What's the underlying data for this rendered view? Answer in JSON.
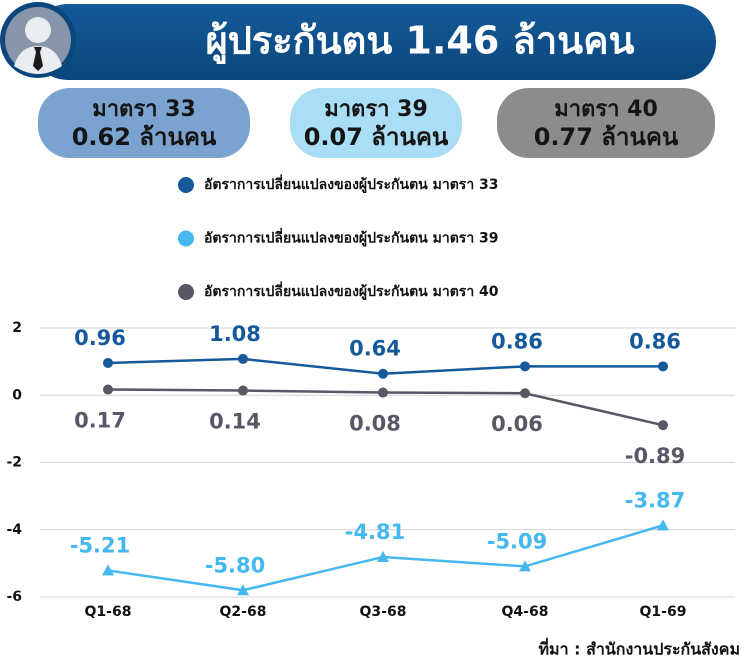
{
  "header": {
    "title": "ผู้ประกันตน   1.46 ล้านคน"
  },
  "cards": [
    {
      "label": "มาตรา 33",
      "value": "0.62 ล้านคน",
      "color": "#7ba3cf"
    },
    {
      "label": "มาตรา 39",
      "value": "0.07 ล้านคน",
      "color": "#a9def6"
    },
    {
      "label": "มาตรา 40",
      "value": "0.77 ล้านคน",
      "color": "#8c8c8c"
    }
  ],
  "source": "ที่มา : สำนักงานประกันสังคม",
  "chart_data": {
    "type": "line",
    "categories": [
      "Q1-68",
      "Q2-68",
      "Q3-68",
      "Q4-68",
      "Q1-69"
    ],
    "series": [
      {
        "name": "อัตราการเปลี่ยนแปลงของผู้ประกันตน มาตรา 33",
        "color": "#15599a",
        "marker": "circle",
        "label_position": "above",
        "values": [
          0.96,
          1.08,
          0.64,
          0.86,
          0.86
        ]
      },
      {
        "name": "อัตราการเปลี่ยนแปลงของผู้ประกันตน มาตรา 39",
        "color": "#45b8ef",
        "marker": "triangle",
        "label_position": "above",
        "values": [
          -5.21,
          -5.8,
          -4.81,
          -5.09,
          -3.87
        ],
        "value_labels": [
          "-5.21",
          "-5.80",
          "-4.81",
          "-5.09",
          "-3.87"
        ]
      },
      {
        "name": "อัตราการเปลี่ยนแปลงของผู้ประกันตน มาตรา 40",
        "color": "#575766",
        "marker": "circle",
        "label_position": "below",
        "values": [
          0.17,
          0.14,
          0.08,
          0.06,
          -0.89
        ]
      }
    ],
    "ylim": [
      -6,
      2
    ],
    "yticks": [
      2,
      0,
      -2,
      -4,
      -6
    ],
    "grid": true
  }
}
